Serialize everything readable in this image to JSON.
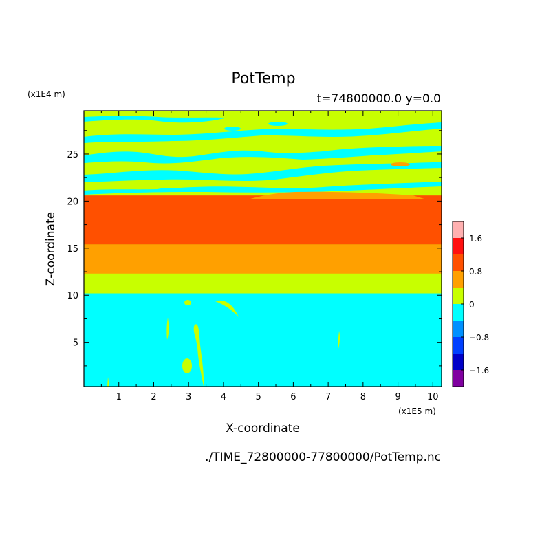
{
  "chart_data": {
    "type": "heatmap",
    "title": "PotTemp",
    "subtitle": "t=74800000.0 y=0.0",
    "xlabel": "X-coordinate",
    "ylabel": "Z-coordinate",
    "x_unit": "(x1E5 m)",
    "y_unit": "(x1E4 m)",
    "source_file": "./TIME_72800000-77800000/PotTemp.nc",
    "xlim": [
      0,
      10.25
    ],
    "ylim": [
      0.3,
      29.6
    ],
    "xticks": [
      "1",
      "2",
      "3",
      "4",
      "5",
      "6",
      "7",
      "8",
      "9",
      "10"
    ],
    "yticks": [
      "5",
      "10",
      "15",
      "20",
      "25"
    ],
    "colorbar": {
      "colors": [
        "#8000a0",
        "#0000c8",
        "#0040ff",
        "#0090ff",
        "#00ffff",
        "#c8ff00",
        "#ffa000",
        "#ff5000",
        "#ff1010",
        "#ffb0b0"
      ],
      "tick_labels": [
        "1.6",
        "0.8",
        "0",
        "−0.8",
        "−1.6"
      ],
      "tick_values": [
        1.6,
        0.8,
        0,
        -0.8,
        -1.6
      ],
      "range": [
        -2.0,
        2.0
      ]
    },
    "bands": [
      {
        "z_min": 0.3,
        "z_max": 10.2,
        "color": "#00ffff",
        "level": "-0.4 to 0"
      },
      {
        "z_min": 10.2,
        "z_max": 12.3,
        "color": "#c8ff00",
        "level": "0 to 0.4"
      },
      {
        "z_min": 12.3,
        "z_max": 15.4,
        "color": "#ffa000",
        "level": "0.4 to 0.8"
      },
      {
        "z_min": 15.4,
        "z_max": 20.6,
        "color": "#ff5000",
        "level": "0.8 to 1.2"
      },
      {
        "z_min": 20.6,
        "z_max": 29.6,
        "color": "#c8ff00",
        "level": "0 to 0.4 (with -0.4 to 0 streaks)"
      }
    ]
  }
}
